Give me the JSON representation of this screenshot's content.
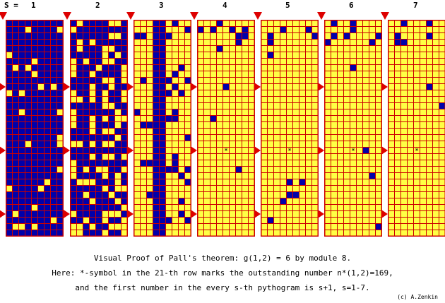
{
  "header": {
    "s_label": "S =",
    "columns": [
      "1",
      "2",
      "3",
      "4",
      "5",
      "6",
      "7"
    ]
  },
  "colors": {
    "grid_line": "#cc0000",
    "cell_yellow": "#ffff44",
    "cell_blue": "#0000aa",
    "marker": "#dd0000",
    "star": "#000000"
  },
  "grid": {
    "rows": 34,
    "cols": 9,
    "marked_row": 21,
    "star_symbol": "*",
    "arrow_rows": [
      1,
      11,
      21,
      31
    ]
  },
  "panels": [
    {
      "s": 1,
      "pattern": "mostly-blue"
    },
    {
      "s": 2,
      "pattern": "mixed"
    },
    {
      "s": 3,
      "pattern": "mostly-yellow"
    },
    {
      "s": 4,
      "pattern": "sparse-blue",
      "star": true
    },
    {
      "s": 5,
      "pattern": "sparse-blue",
      "star": true
    },
    {
      "s": 6,
      "pattern": "sparse-blue",
      "star": true
    },
    {
      "s": 7,
      "pattern": "sparse-blue",
      "star": true
    }
  ],
  "caption": {
    "line1": "Visual Proof of Pall's theorem: g(1,2) = 6 by module 8.",
    "line2": "Here: *-symbol in the 21-th row marks the outstanding number n*(1,2)=169,",
    "line3": "and the first number in the every s-th pythogram is s+1, s=1-7."
  },
  "credit": "(c) A.Zenkin"
}
